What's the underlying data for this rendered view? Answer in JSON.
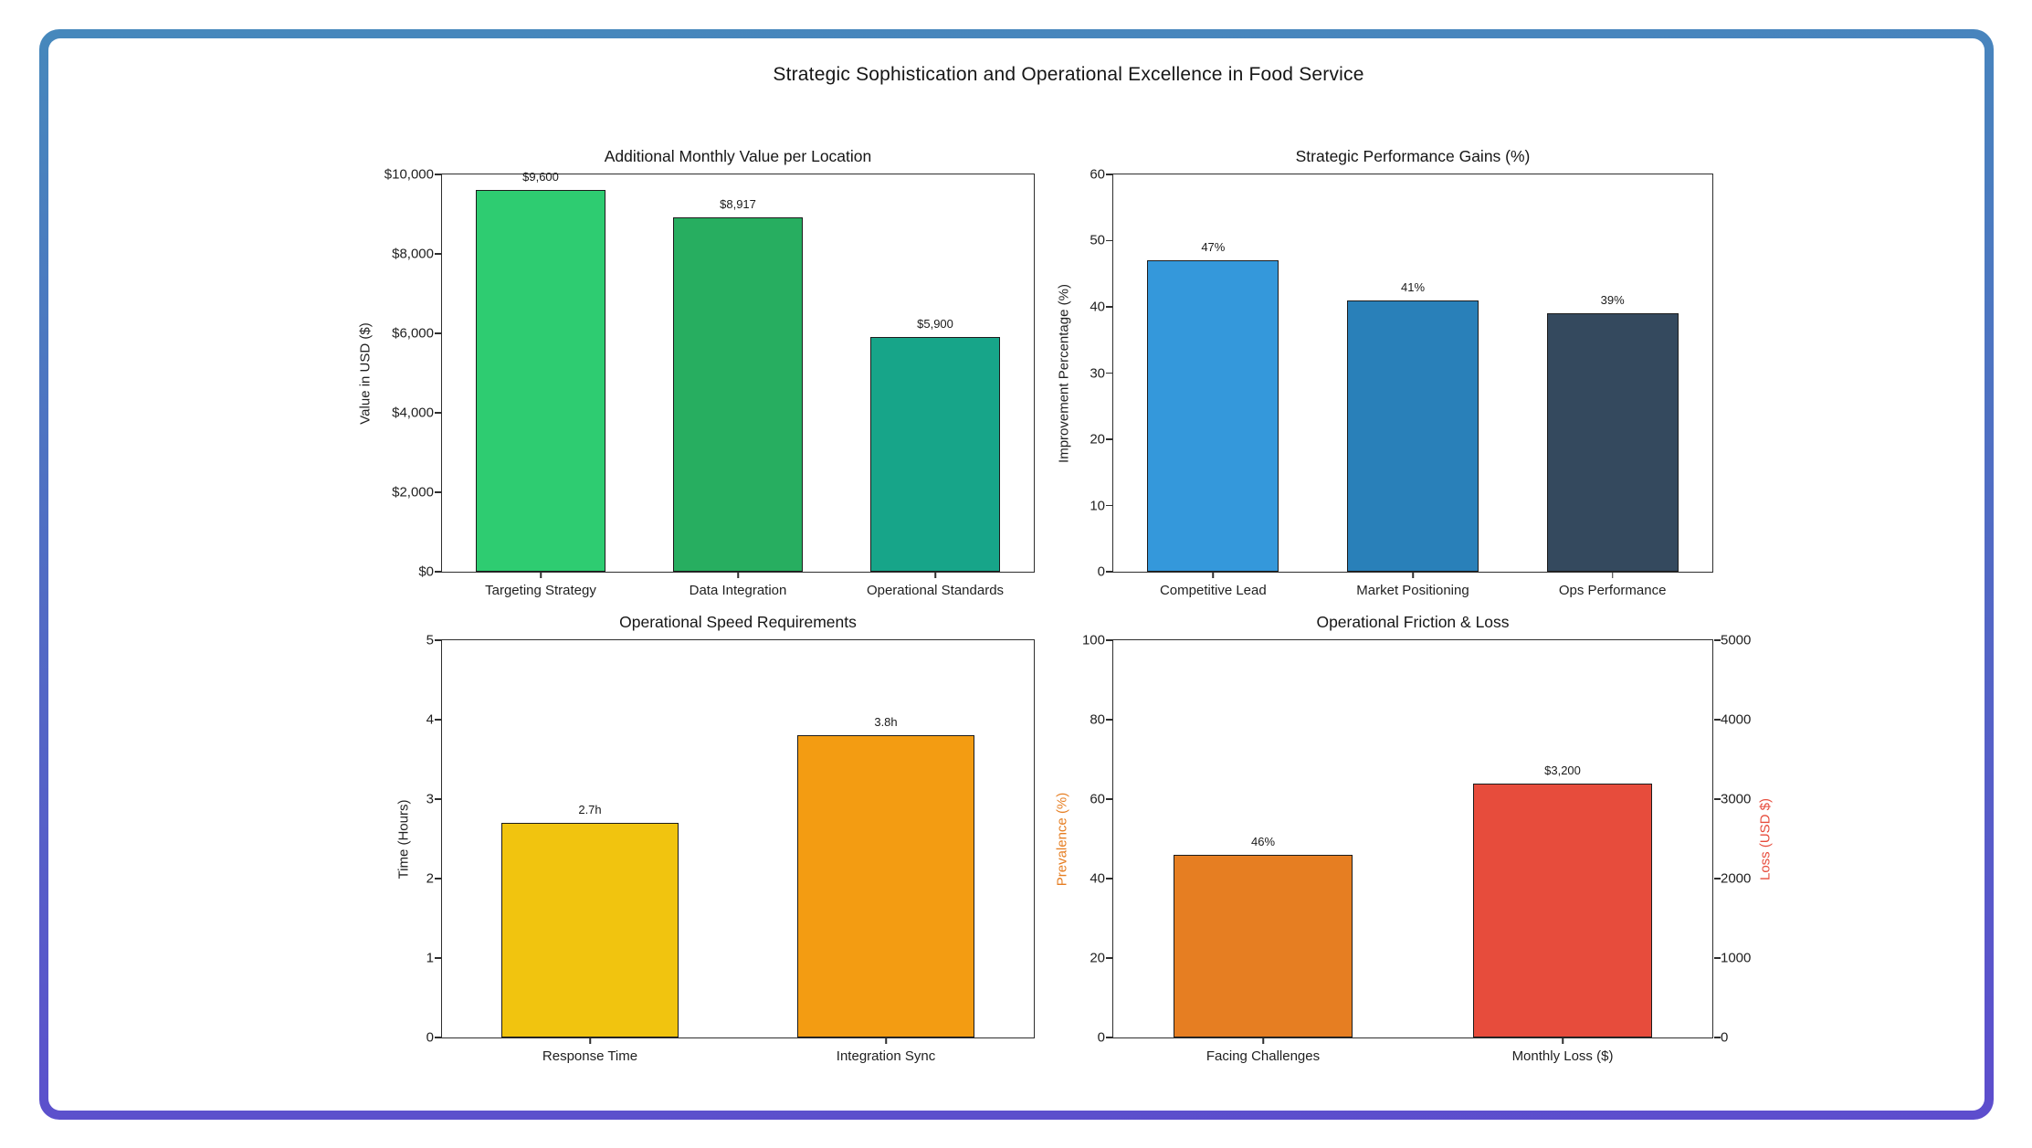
{
  "page_title": "Strategic Sophistication and Operational Excellence in Food Service",
  "frame": {
    "gradient_top": "#4688bc",
    "gradient_bottom": "#5d4dcd"
  },
  "chart_data": [
    {
      "type": "bar",
      "title": "Additional Monthly Value per Location",
      "ylabel": "Value in USD ($)",
      "categories": [
        "Targeting Strategy",
        "Data Integration",
        "Operational Standards"
      ],
      "values": [
        9600,
        8917,
        5900
      ],
      "value_labels": [
        "$9,600",
        "$8,917",
        "$5,900"
      ],
      "bar_colors": [
        "#2ecc71",
        "#27ae60",
        "#17a589"
      ],
      "ylim": [
        0,
        10000
      ],
      "ytick_values": [
        0,
        2000,
        4000,
        6000,
        8000,
        10000
      ],
      "ytick_labels": [
        "$0",
        "$2,000",
        "$4,000",
        "$6,000",
        "$8,000",
        "$10,000"
      ],
      "grid": false,
      "legend": null
    },
    {
      "type": "bar",
      "title": "Strategic Performance Gains (%)",
      "ylabel": "Improvement Percentage (%)",
      "categories": [
        "Competitive Lead",
        "Market Positioning",
        "Ops Performance"
      ],
      "values": [
        47,
        41,
        39
      ],
      "value_labels": [
        "47%",
        "41%",
        "39%"
      ],
      "bar_colors": [
        "#3498db",
        "#2980b9",
        "#34495e"
      ],
      "ylim": [
        0,
        60
      ],
      "ytick_values": [
        0,
        10,
        20,
        30,
        40,
        50,
        60
      ],
      "ytick_labels": [
        "0",
        "10",
        "20",
        "30",
        "40",
        "50",
        "60"
      ],
      "grid": false,
      "legend": null
    },
    {
      "type": "bar",
      "title": "Operational Speed Requirements",
      "ylabel": "Time (Hours)",
      "categories": [
        "Response Time",
        "Integration Sync"
      ],
      "values": [
        2.7,
        3.8
      ],
      "value_labels": [
        "2.7h",
        "3.8h"
      ],
      "bar_colors": [
        "#f1c40f",
        "#f39c12"
      ],
      "ylim": [
        0,
        5
      ],
      "ytick_values": [
        0,
        1,
        2,
        3,
        4,
        5
      ],
      "ytick_labels": [
        "0",
        "1",
        "2",
        "3",
        "4",
        "5"
      ],
      "grid": false,
      "legend": null
    },
    {
      "type": "bar-dual-axis",
      "title": "Operational Friction & Loss",
      "ylabel_left": "Prevalence (%)",
      "ylabel_right": "Loss (USD $)",
      "ylabel_left_color": "#e67e22",
      "ylabel_right_color": "#e74c3c",
      "categories": [
        "Facing Challenges",
        "Monthly Loss ($)"
      ],
      "bars": [
        {
          "category": "Facing Challenges",
          "value": 46,
          "axis": "left",
          "value_label": "46%",
          "color": "#e67e22"
        },
        {
          "category": "Monthly Loss ($)",
          "value": 3200,
          "axis": "right",
          "value_label": "$3,200",
          "color": "#e74c3c"
        }
      ],
      "left_ylim": [
        0,
        100
      ],
      "right_ylim": [
        0,
        5000
      ],
      "left_ytick_values": [
        0,
        20,
        40,
        60,
        80,
        100
      ],
      "left_ytick_labels": [
        "0",
        "20",
        "40",
        "60",
        "80",
        "100"
      ],
      "right_ytick_values": [
        0,
        1000,
        2000,
        3000,
        4000,
        5000
      ],
      "right_ytick_labels": [
        "0",
        "1000",
        "2000",
        "3000",
        "4000",
        "5000"
      ],
      "grid": false,
      "legend": null
    }
  ]
}
